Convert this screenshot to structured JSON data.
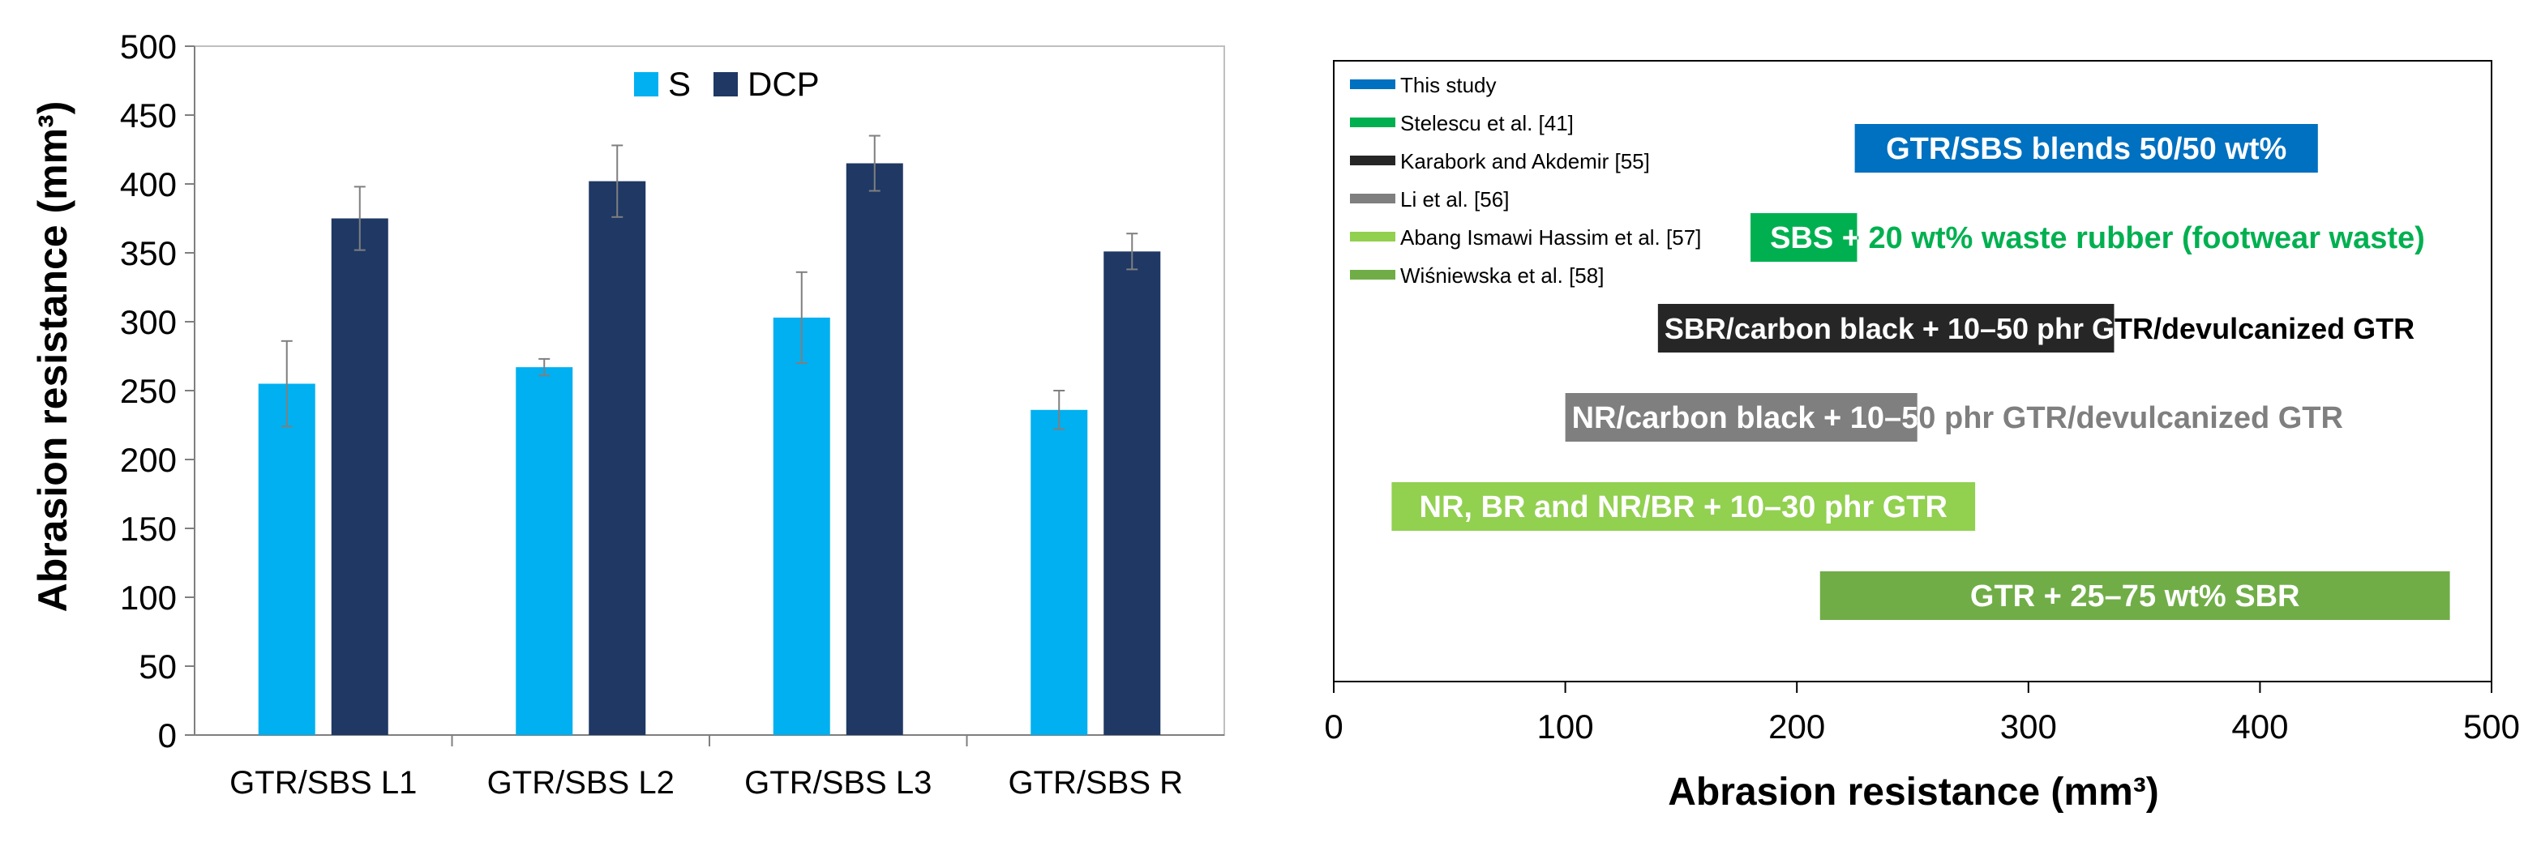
{
  "chart_data": [
    {
      "type": "bar",
      "categories": [
        "GTR/SBS L1",
        "GTR/SBS L2",
        "GTR/SBS L3",
        "GTR/SBS R"
      ],
      "series": [
        {
          "name": "S",
          "color": "#00b0f0",
          "values": [
            255,
            267,
            303,
            236
          ],
          "errors": [
            31,
            6,
            33,
            14
          ]
        },
        {
          "name": "DCP",
          "color": "#1f3864",
          "values": [
            375,
            402,
            415,
            351
          ],
          "errors": [
            23,
            26,
            20,
            13
          ]
        }
      ],
      "ylabel": "Abrasion resistance (mm³)",
      "xlabel": "",
      "ylim": [
        0,
        500
      ],
      "yticks": [
        "0",
        "50",
        "100",
        "150",
        "200",
        "250",
        "300",
        "350",
        "400",
        "450",
        "500"
      ],
      "legend_position": "top-center",
      "grid": false
    },
    {
      "type": "bar",
      "orientation": "horizontal-range",
      "xlabel": "Abrasion resistance (mm³)",
      "xlim": [
        0,
        500
      ],
      "xticks": [
        "0",
        "100",
        "200",
        "300",
        "400",
        "500"
      ],
      "legend_position": "top-left",
      "legend": [
        {
          "name": "This study",
          "color": "#0070c0"
        },
        {
          "name": "Stelescu et al. [41]",
          "color": "#00b050"
        },
        {
          "name": "Karabork and Akdemir [55]",
          "color": "#262626"
        },
        {
          "name": "Li et al. [56]",
          "color": "#7f7f7f"
        },
        {
          "name": "Abang Ismawi Hassim et al. [57]",
          "color": "#92d050"
        },
        {
          "name": "Wiśniewska et al. [58]",
          "color": "#70ad47"
        }
      ],
      "ranges": [
        {
          "label": "GTR/SBS blends 50/50 wt%",
          "start": 225,
          "end": 425,
          "color": "#0070c0"
        },
        {
          "label": "SBS + 20 wt% waste rubber (footwear waste)",
          "start": 180,
          "end": 226,
          "color": "#00b050"
        },
        {
          "label": "SBR/carbon black + 10–50 phr GTR/devulcanized GTR",
          "start": 140,
          "end": 337,
          "color": "#262626"
        },
        {
          "label": "NR/carbon black + 10–50 phr GTR/devulcanized GTR",
          "start": 100,
          "end": 252,
          "color": "#7f7f7f"
        },
        {
          "label": "NR, BR and NR/BR + 10–30 phr GTR",
          "start": 25,
          "end": 277,
          "color": "#92d050"
        },
        {
          "label": "GTR + 25–75 wt% SBR",
          "start": 210,
          "end": 482,
          "color": "#70ad47"
        }
      ]
    }
  ]
}
